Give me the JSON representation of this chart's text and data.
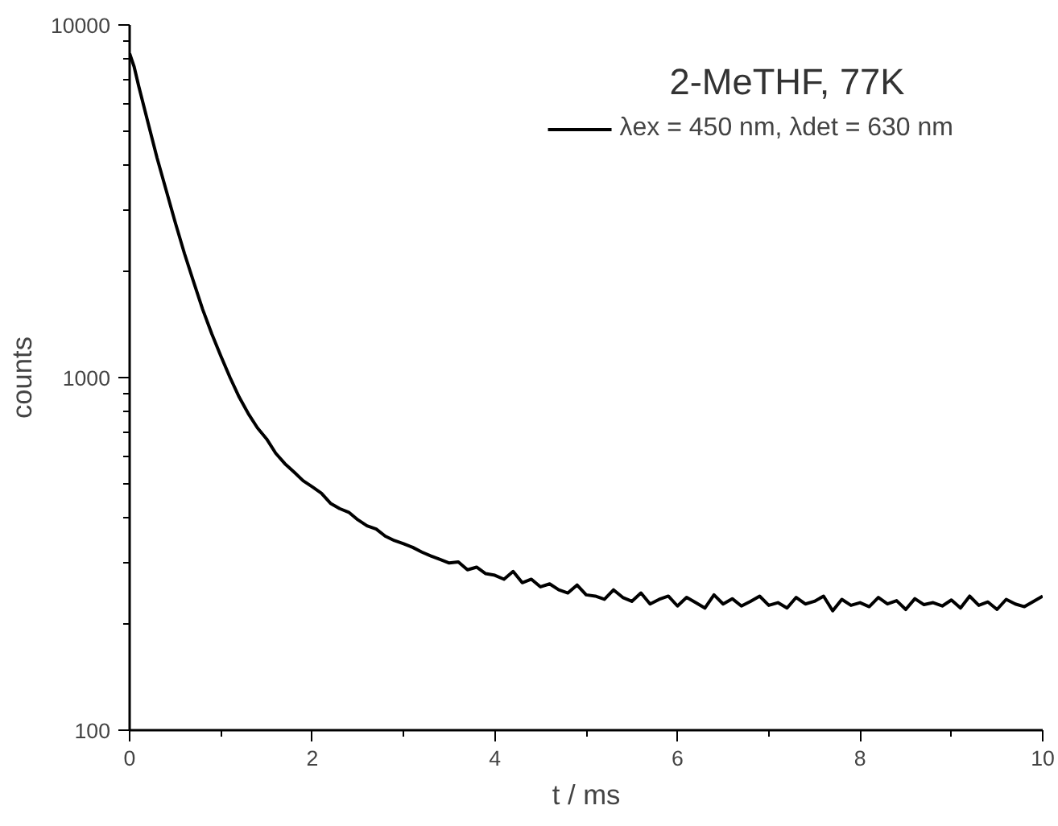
{
  "chart_data": {
    "type": "line",
    "xlabel": "t / ms",
    "ylabel": "counts",
    "annotations": [
      "2-MeTHF, 77K"
    ],
    "log": "y",
    "xlim": [
      0,
      10
    ],
    "ylim": [
      100,
      10000
    ],
    "xticks": [
      0,
      2,
      4,
      6,
      8,
      10
    ],
    "yticks": [
      100,
      1000,
      10000
    ],
    "grid": false,
    "legend": "top right",
    "marker": "none",
    "line_style": "solid",
    "series": [
      {
        "name": "λex = 450 nm, λdet = 630 nm",
        "color": "#000000",
        "x": [
          0,
          0.05,
          0.1,
          0.2,
          0.3,
          0.4,
          0.5,
          0.6,
          0.7,
          0.8,
          0.9,
          1.0,
          1.1,
          1.2,
          1.3,
          1.4,
          1.5,
          1.6,
          1.7,
          1.8,
          1.9,
          2.0,
          2.1,
          2.2,
          2.3,
          2.4,
          2.5,
          2.6,
          2.7,
          2.8,
          2.9,
          3.0,
          3.1,
          3.2,
          3.3,
          3.4,
          3.5,
          3.6,
          3.7,
          3.8,
          3.9,
          4.0,
          4.1,
          4.2,
          4.3,
          4.4,
          4.5,
          4.6,
          4.7,
          4.8,
          4.9,
          5.0,
          5.1,
          5.2,
          5.3,
          5.4,
          5.5,
          5.6,
          5.7,
          5.8,
          5.9,
          6.0,
          6.1,
          6.2,
          6.3,
          6.4,
          6.5,
          6.6,
          6.7,
          6.8,
          6.9,
          7.0,
          7.1,
          7.2,
          7.3,
          7.4,
          7.5,
          7.6,
          7.7,
          7.8,
          7.9,
          8.0,
          8.1,
          8.2,
          8.3,
          8.4,
          8.5,
          8.6,
          8.7,
          8.8,
          8.9,
          9.0,
          9.1,
          9.2,
          9.3,
          9.4,
          9.5,
          9.6,
          9.7,
          9.8,
          9.9,
          10.0
        ],
        "values": [
          8300,
          7600,
          6700,
          5300,
          4200,
          3400,
          2750,
          2250,
          1870,
          1560,
          1330,
          1150,
          1000,
          880,
          790,
          720,
          670,
          610,
          570,
          540,
          510,
          490,
          470,
          440,
          425,
          415,
          395,
          380,
          372,
          355,
          345,
          338,
          330,
          320,
          312,
          305,
          298,
          300,
          285,
          290,
          278,
          275,
          268,
          282,
          262,
          268,
          255,
          260,
          250,
          245,
          258,
          242,
          240,
          235,
          250,
          238,
          232,
          245,
          228,
          235,
          240,
          225,
          238,
          230,
          222,
          242,
          228,
          236,
          225,
          232,
          240,
          226,
          230,
          222,
          238,
          228,
          232,
          240,
          218,
          235,
          226,
          230,
          224,
          238,
          228,
          233,
          220,
          236,
          227,
          230,
          225,
          234,
          222,
          240,
          226,
          231,
          220,
          235,
          228,
          224,
          232,
          240
        ]
      }
    ]
  }
}
